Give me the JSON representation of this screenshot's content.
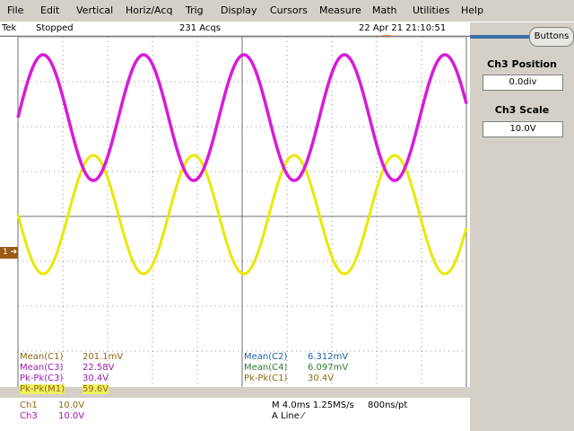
{
  "menu": [
    "File",
    "Edit",
    "Vertical",
    "Horiz/Acq",
    "Trig",
    "Display",
    "Cursors",
    "Measure",
    "Math",
    "Utilities",
    "Help"
  ],
  "status": {
    "brand": "Tek",
    "state": "Stopped",
    "acqs": "231 Acqs",
    "datetime": "22 Apr 21 21:10:51"
  },
  "right_panel": {
    "buttons_label": "Buttons",
    "ch3_position_label": "Ch3 Position",
    "ch3_position_value": "0.0div",
    "ch3_scale_label": "Ch3 Scale",
    "ch3_scale_value": "10.0V"
  },
  "ch1_marker": "1",
  "measurements": {
    "mean_c1_label": "Mean(C1)",
    "mean_c1_value": "201.1mV",
    "mean_c3_label": "Mean(C3)",
    "mean_c3_value": "22.58V",
    "pkpk_c3_label": "Pk-Pk(C3)",
    "pkpk_c3_value": "30.4V",
    "pkpk_m1_label": "Pk-Pk(M1)",
    "pkpk_m1_value": "59.6V",
    "mean_c2_label": "Mean(C2)",
    "mean_c2_value": "6.312mV",
    "mean_c4_label": "Mean(C4)",
    "mean_c4_value": "6.097mV",
    "pkpk_c1_label": "Pk-Pk(C1)",
    "pkpk_c1_value": "30.4V"
  },
  "bottom": {
    "ch1_label": "Ch1",
    "ch1_scale": "10.0V",
    "ch3_label": "Ch3",
    "ch3_scale": "10.0V",
    "timebase": "M 4.0ms 1.25MS/s",
    "resolution": "800ns/pt",
    "trigger": "A  Line  ⁄"
  },
  "colors": {
    "ch1": "#e8e800",
    "ch3": "#d81bd8",
    "grid": "#707070",
    "mean_c1": "#8b6914",
    "mean_c3": "#9b1bb0",
    "mean_c2": "#1e5fa8",
    "mean_c4": "#2f7a2f",
    "pkpk": "#8b6914"
  }
}
